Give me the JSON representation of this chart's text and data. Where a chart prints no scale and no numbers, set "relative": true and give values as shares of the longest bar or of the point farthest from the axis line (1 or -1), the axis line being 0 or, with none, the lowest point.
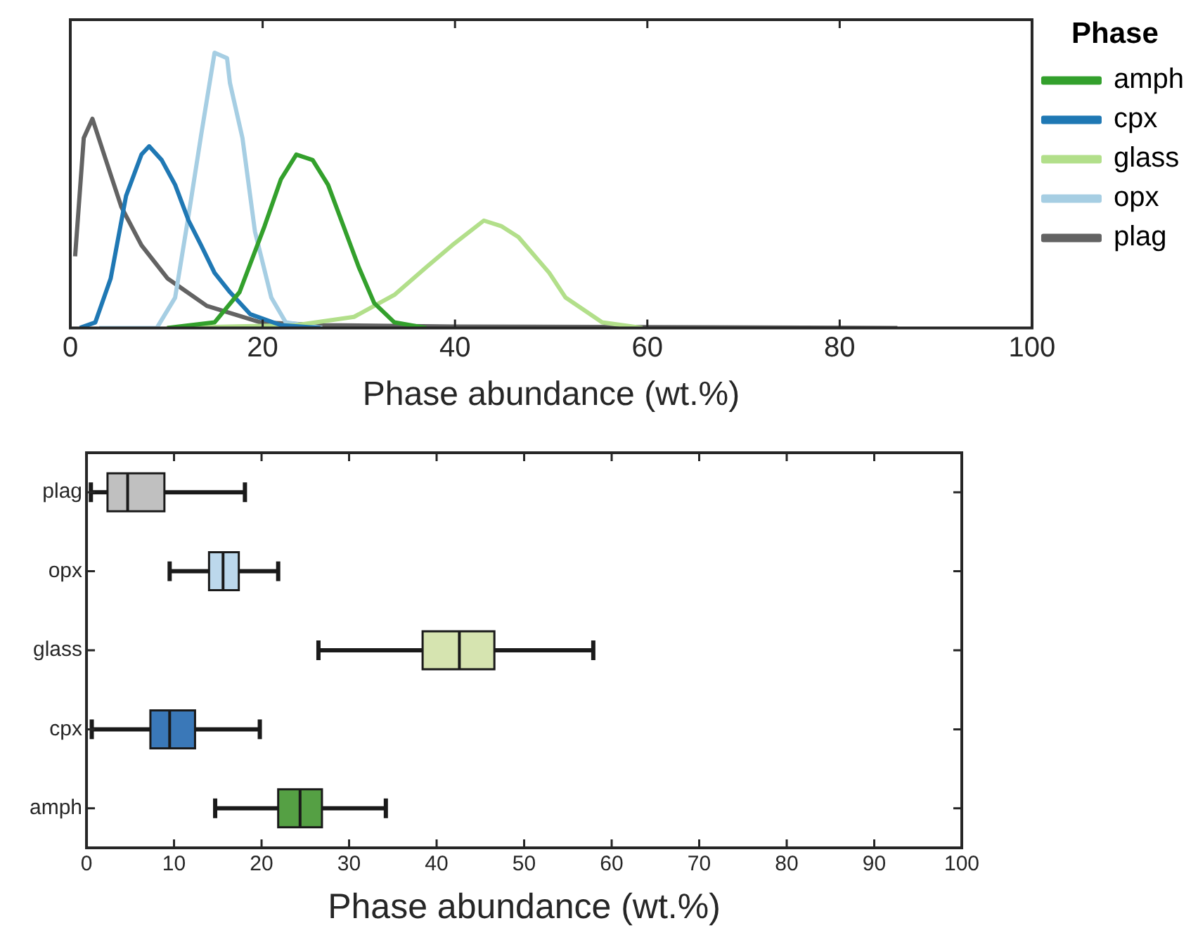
{
  "chart_data": [
    {
      "type": "line",
      "xlabel": "Phase abundance (wt.%)",
      "relative": true,
      "xlim": [
        0,
        100
      ],
      "xticks": [
        0,
        20,
        40,
        60,
        80,
        100
      ],
      "legend": "right",
      "legend_title": "Phase",
      "marker": "none",
      "series": [
        {
          "name": "amph",
          "color": "#33a02c",
          "x": [
            10.1,
            15.0,
            17.6,
            20.2,
            21.9,
            23.5,
            25.2,
            26.8,
            28.4,
            30.0,
            31.6,
            33.7,
            37.0
          ],
          "values": [
            0,
            0.02,
            0.13,
            0.37,
            0.54,
            0.63,
            0.61,
            0.52,
            0.37,
            0.22,
            0.09,
            0.02,
            0
          ]
        },
        {
          "name": "cpx",
          "color": "#1f78b4",
          "x": [
            1.0,
            2.6,
            4.2,
            5.8,
            7.4,
            8.2,
            9.5,
            10.9,
            12.3,
            13.6,
            15.0,
            16.6,
            18.7,
            21.9,
            26.0
          ],
          "values": [
            0,
            0.02,
            0.18,
            0.48,
            0.63,
            0.66,
            0.61,
            0.52,
            0.39,
            0.3,
            0.2,
            0.13,
            0.05,
            0.01,
            0
          ]
        },
        {
          "name": "glass",
          "color": "#b2df8a",
          "x": [
            10,
            23.5,
            29.5,
            33.7,
            37.0,
            39.7,
            43.0,
            44.8,
            46.6,
            49.8,
            51.5,
            55.3,
            59.5
          ],
          "values": [
            0,
            0.01,
            0.04,
            0.12,
            0.22,
            0.3,
            0.39,
            0.37,
            0.33,
            0.2,
            0.11,
            0.02,
            0
          ]
        },
        {
          "name": "opx",
          "color": "#a6cee3",
          "x": [
            3,
            9.0,
            10.9,
            12.3,
            13.6,
            15.0,
            16.3,
            16.6,
            17.9,
            19.2,
            20.9,
            22.4,
            26.2
          ],
          "values": [
            0,
            0,
            0.11,
            0.41,
            0.7,
            1,
            0.98,
            0.89,
            0.69,
            0.35,
            0.11,
            0.02,
            0
          ]
        },
        {
          "name": "plag",
          "color": "#636363",
          "x": [
            0.5,
            1.4,
            2.3,
            3.7,
            5.3,
            7.4,
            10.1,
            14.2,
            19.8,
            26.2,
            40,
            86
          ],
          "values": [
            0.26,
            0.69,
            0.76,
            0.61,
            0.44,
            0.3,
            0.18,
            0.08,
            0.02,
            0.01,
            0.005,
            0
          ]
        }
      ]
    },
    {
      "type": "box",
      "orientation": "horizontal",
      "xlabel": "Phase abundance (wt.%)",
      "xlim": [
        0,
        100
      ],
      "xticks": [
        0,
        10,
        20,
        30,
        40,
        50,
        60,
        70,
        80,
        90,
        100
      ],
      "categories": [
        "plag",
        "opx",
        "glass",
        "cpx",
        "amph"
      ],
      "colors": [
        "#c0c0c0",
        "#bcd8ec",
        "#d6e4b0",
        "#3a78b8",
        "#55a044"
      ],
      "boxes": [
        {
          "low": 0.5,
          "q1": 2.4,
          "median": 4.7,
          "q3": 8.9,
          "high": 18.1
        },
        {
          "low": 9.5,
          "q1": 14.0,
          "median": 15.6,
          "q3": 17.4,
          "high": 21.9
        },
        {
          "low": 26.5,
          "q1": 38.4,
          "median": 42.6,
          "q3": 46.6,
          "high": 57.9
        },
        {
          "low": 0.6,
          "q1": 7.3,
          "median": 9.5,
          "q3": 12.4,
          "high": 19.8
        },
        {
          "low": 14.7,
          "q1": 21.9,
          "median": 24.4,
          "q3": 26.9,
          "high": 34.2
        }
      ]
    }
  ]
}
